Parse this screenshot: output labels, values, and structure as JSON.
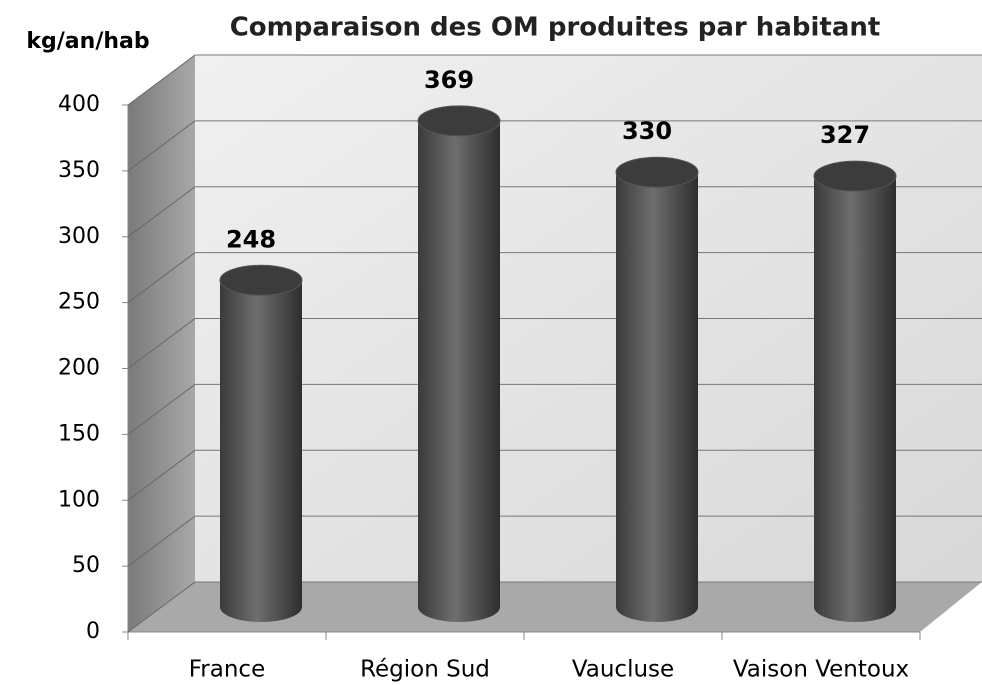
{
  "chart_data": {
    "type": "bar",
    "title": "Comparaison des OM produites par habitant",
    "y_axis_label": "kg/an/hab",
    "categories": [
      "France",
      "Région Sud",
      "Vaucluse",
      "Vaison Ventoux"
    ],
    "values": [
      248,
      369,
      330,
      327
    ],
    "color": "#4a4a4a",
    "ylim": [
      0,
      400
    ],
    "yticks": [
      0,
      50,
      100,
      150,
      200,
      250,
      300,
      350,
      400
    ],
    "grid": true
  }
}
